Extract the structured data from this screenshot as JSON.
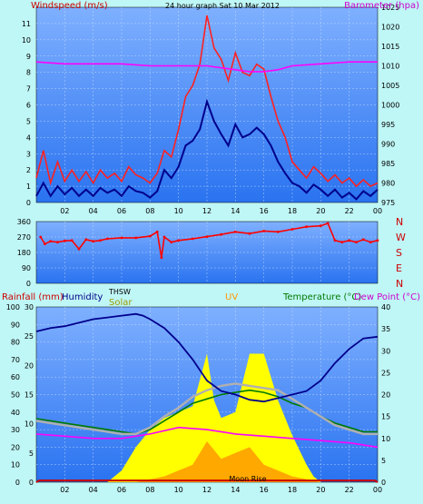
{
  "colors": {
    "background": "#bff6f6",
    "plot_bg_top": "#7fb0ff",
    "plot_bg_bottom": "#2a73f0",
    "grid": "#cfe3ff",
    "wind_gust": "#ff2020",
    "wind_avg": "#00008b",
    "barometer": "#ff00ff",
    "direction": "#ff0000",
    "humidity": "#00008b",
    "solar": "#ffff00",
    "uv": "#ff9900",
    "temperature": "#007a00",
    "dew_point": "#ff00ff",
    "thsw": "#b0b0b0",
    "rainfall": "#cc0000"
  },
  "chart_data": [
    {
      "type": "line",
      "title": "24 hour graph Sat 10 Mar 2012",
      "ylabel_left": "Windspeed (m/s)",
      "ylabel_right": "Barometer (hpa)",
      "ylim_left": [
        0,
        12
      ],
      "ylim_right": [
        975,
        1025
      ],
      "xlim": [
        0,
        24
      ],
      "y_ticks_left": [
        "0",
        "1",
        "2",
        "3",
        "4",
        "5",
        "6",
        "7",
        "8",
        "9",
        "10",
        "11"
      ],
      "y_ticks_right": [
        "975",
        "980",
        "985",
        "990",
        "995",
        "1000",
        "1005",
        "1010",
        "1015",
        "1020",
        "1025"
      ],
      "x_ticks": [
        "02",
        "04",
        "06",
        "08",
        "10",
        "12",
        "14",
        "16",
        "18",
        "20",
        "22",
        "00"
      ],
      "series": [
        {
          "name": "Wind gust",
          "x": [
            0,
            0.5,
            1,
            1.5,
            2,
            2.5,
            3,
            3.5,
            4,
            4.5,
            5,
            5.5,
            6,
            6.5,
            7,
            7.5,
            8,
            8.5,
            9,
            9.5,
            10,
            10.5,
            11,
            11.5,
            12,
            12.5,
            13,
            13.5,
            14,
            14.5,
            15,
            15.5,
            16,
            16.5,
            17,
            17.5,
            18,
            18.5,
            19,
            19.5,
            20,
            20.5,
            21,
            21.5,
            22,
            22.5,
            23,
            23.5,
            24
          ],
          "values": [
            1.5,
            3.2,
            1.2,
            2.5,
            1.3,
            2.0,
            1.3,
            1.9,
            1.2,
            2.0,
            1.5,
            1.8,
            1.3,
            2.2,
            1.7,
            1.5,
            1.2,
            1.8,
            3.2,
            2.8,
            4.5,
            6.5,
            7.2,
            8.5,
            11.5,
            9.5,
            8.8,
            7.5,
            9.2,
            8.0,
            7.8,
            8.5,
            8.2,
            6.5,
            5.0,
            4.0,
            2.5,
            2.0,
            1.5,
            2.2,
            1.8,
            1.3,
            1.7,
            1.2,
            1.5,
            1.0,
            1.4,
            1.0,
            1.2
          ]
        },
        {
          "name": "Wind average",
          "x": [
            0,
            0.5,
            1,
            1.5,
            2,
            2.5,
            3,
            3.5,
            4,
            4.5,
            5,
            5.5,
            6,
            6.5,
            7,
            7.5,
            8,
            8.5,
            9,
            9.5,
            10,
            10.5,
            11,
            11.5,
            12,
            12.5,
            13,
            13.5,
            14,
            14.5,
            15,
            15.5,
            16,
            16.5,
            17,
            17.5,
            18,
            18.5,
            19,
            19.5,
            20,
            20.5,
            21,
            21.5,
            22,
            22.5,
            23,
            23.5,
            24
          ],
          "values": [
            0.4,
            1.2,
            0.4,
            1.0,
            0.5,
            0.9,
            0.4,
            0.8,
            0.4,
            0.9,
            0.6,
            0.8,
            0.4,
            1.0,
            0.7,
            0.6,
            0.3,
            0.7,
            2.0,
            1.5,
            2.2,
            3.5,
            3.8,
            4.5,
            6.2,
            5.0,
            4.2,
            3.5,
            4.8,
            4.0,
            4.2,
            4.6,
            4.2,
            3.5,
            2.5,
            1.8,
            1.2,
            1.0,
            0.6,
            1.1,
            0.8,
            0.4,
            0.8,
            0.3,
            0.6,
            0.2,
            0.7,
            0.4,
            0.8
          ]
        },
        {
          "name": "Barometer",
          "axis": "right",
          "x": [
            0,
            2,
            4,
            6,
            8,
            10,
            12,
            13,
            14,
            15,
            16,
            17,
            18,
            20,
            22,
            24
          ],
          "values": [
            1011,
            1010.5,
            1010.5,
            1010.5,
            1010,
            1010,
            1010,
            1009.5,
            1009,
            1008.5,
            1008.5,
            1009,
            1010,
            1010.5,
            1011,
            1011
          ]
        }
      ]
    },
    {
      "type": "scatter",
      "title": "",
      "ylim_left": [
        0,
        360
      ],
      "y_ticks_left": [
        "0",
        "90",
        "180",
        "270",
        "360"
      ],
      "y_ticks_right": [
        "N",
        "E",
        "S",
        "W",
        "N"
      ],
      "series": [
        {
          "name": "Wind direction",
          "x": [
            0.3,
            0.6,
            1,
            1.5,
            2,
            2.5,
            3,
            3.5,
            4,
            4.5,
            5,
            6,
            7,
            8,
            8.5,
            8.8,
            9,
            9.5,
            10,
            11,
            12,
            13,
            14,
            15,
            16,
            17,
            18,
            19,
            20,
            20.5,
            21,
            21.5,
            22,
            22.5,
            23,
            23.5,
            24
          ],
          "values": [
            270,
            230,
            245,
            240,
            248,
            250,
            200,
            255,
            245,
            250,
            260,
            265,
            265,
            275,
            300,
            150,
            270,
            240,
            250,
            260,
            272,
            285,
            300,
            290,
            305,
            300,
            315,
            330,
            335,
            350,
            250,
            240,
            250,
            240,
            255,
            240,
            250
          ]
        }
      ]
    },
    {
      "type": "line",
      "ylabel_left": "Rainfall (mm)",
      "labels": [
        "Humidity",
        "Solar",
        "THSW",
        "UV",
        "Temperature (°C)",
        "Dew Point (°C)"
      ],
      "annotation": "Moon Rise",
      "ylim_left": [
        0,
        100
      ],
      "ylim_mid": [
        0,
        30
      ],
      "ylim_right": [
        0,
        40
      ],
      "y_ticks_left": [
        "0",
        "10",
        "20",
        "30",
        "40",
        "50",
        "60",
        "70",
        "80",
        "90",
        "100"
      ],
      "y_ticks_mid": [
        "0",
        "5",
        "10",
        "15",
        "20",
        "25",
        "30"
      ],
      "y_ticks_right": [
        "0",
        "5",
        "10",
        "15",
        "20",
        "25",
        "30",
        "35",
        "40"
      ],
      "x_ticks": [
        "02",
        "04",
        "06",
        "08",
        "10",
        "12",
        "14",
        "16",
        "18",
        "20",
        "22",
        "00"
      ],
      "series": [
        {
          "name": "Humidity",
          "x": [
            0,
            1,
            2,
            3,
            4,
            5,
            6,
            7,
            7.5,
            8,
            9,
            10,
            11,
            12,
            13,
            14,
            15,
            16,
            17,
            18,
            19,
            20,
            21,
            22,
            23,
            24
          ],
          "values": [
            86,
            88,
            89,
            91,
            93,
            94,
            95,
            96,
            95,
            93,
            88,
            80,
            70,
            58,
            52,
            50,
            47,
            46,
            48,
            50,
            52,
            58,
            68,
            76,
            82,
            83
          ]
        },
        {
          "name": "Temperature (°C)",
          "axis": "right",
          "x": [
            0,
            1,
            2,
            3,
            4,
            5,
            6,
            7,
            8,
            9,
            10,
            11,
            12,
            13,
            14,
            15,
            16,
            17,
            18,
            19,
            20,
            21,
            22,
            23,
            24
          ],
          "values": [
            14.5,
            14,
            13.5,
            13,
            12.5,
            12,
            11.5,
            11,
            12,
            14,
            16,
            18,
            19,
            20,
            20.5,
            21,
            20.5,
            19.5,
            18,
            17,
            15,
            13.5,
            12.5,
            11.5,
            11.5
          ]
        },
        {
          "name": "THSW",
          "axis": "right",
          "x": [
            0,
            1,
            2,
            3,
            4,
            5,
            6,
            7,
            8,
            9,
            10,
            11,
            12,
            13,
            14,
            15,
            16,
            17,
            18,
            19,
            20,
            21,
            22,
            23,
            24
          ],
          "values": [
            14,
            13.5,
            13,
            12.5,
            12,
            11.5,
            11,
            11,
            12.5,
            15,
            17,
            19.5,
            21,
            22,
            22.5,
            22,
            21.5,
            21,
            19,
            17,
            15,
            13,
            12,
            11,
            11
          ]
        },
        {
          "name": "Dew Point (°C)",
          "axis": "right",
          "x": [
            0,
            2,
            4,
            6,
            8,
            10,
            12,
            14,
            16,
            18,
            20,
            22,
            24
          ],
          "values": [
            11,
            10.5,
            10,
            10,
            11,
            12.5,
            12,
            11,
            10.5,
            10,
            9.5,
            9,
            8
          ]
        },
        {
          "name": "Solar",
          "axis": "mid",
          "x": [
            0,
            5,
            6,
            6.5,
            7,
            8,
            9,
            10,
            11,
            12,
            12.5,
            13,
            14,
            15,
            16,
            17,
            18,
            19,
            19.5,
            20,
            24
          ],
          "values": [
            0,
            0,
            2,
            4,
            6,
            9,
            11,
            12,
            13,
            22,
            14,
            11,
            12,
            22,
            22,
            14,
            8,
            3,
            1,
            0,
            0
          ]
        },
        {
          "name": "UV",
          "axis": "mid",
          "x": [
            0,
            7,
            9,
            10,
            11,
            12,
            13,
            14,
            15,
            16,
            17,
            18,
            19,
            20,
            24
          ],
          "values": [
            0,
            0,
            1,
            2,
            3,
            7,
            4,
            5,
            6,
            3,
            2,
            1,
            0.5,
            0,
            0
          ]
        },
        {
          "name": "Rainfall (mm)",
          "x": [
            0,
            0.2,
            2,
            23.8,
            24
          ],
          "values": [
            0,
            1,
            1,
            1,
            0
          ]
        }
      ]
    }
  ]
}
